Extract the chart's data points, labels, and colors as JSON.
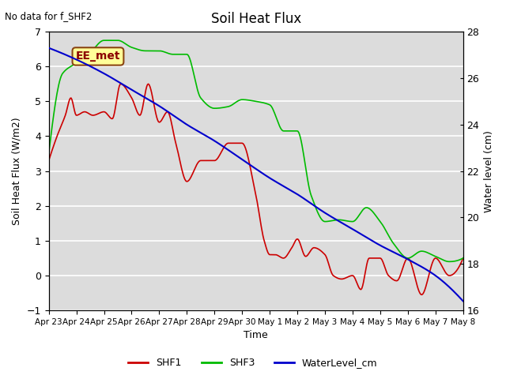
{
  "title": "Soil Heat Flux",
  "top_left_text": "No data for f_SHF2",
  "annotation_box": "EE_met",
  "xlabel": "Time",
  "ylabel_left": "Soil Heat Flux (W/m2)",
  "ylabel_right": "Water level (cm)",
  "ylim_left": [
    -1.0,
    7.0
  ],
  "ylim_right": [
    16,
    28
  ],
  "background_color": "#dcdcdc",
  "xtick_labels": [
    "Apr 23",
    "Apr 24",
    "Apr 25",
    "Apr 26",
    "Apr 27",
    "Apr 28",
    "Apr 29",
    "Apr 30",
    "May 1",
    "May 2",
    "May 3",
    "May 4",
    "May 5",
    "May 6",
    "May 7",
    "May 8"
  ],
  "shf1_color": "#cc0000",
  "shf3_color": "#00bb00",
  "water_color": "#0000cc",
  "legend_labels": [
    "SHF1",
    "SHF3",
    "WaterLevel_cm"
  ],
  "shf1_key_x": [
    0,
    0.3,
    0.6,
    0.8,
    1.0,
    1.3,
    1.6,
    2.0,
    2.3,
    2.6,
    3.0,
    3.3,
    3.6,
    4.0,
    4.3,
    4.6,
    5.0,
    5.5,
    6.0,
    6.5,
    7.0,
    7.5,
    7.8,
    8.0,
    8.2,
    8.5,
    8.8,
    9.0,
    9.3,
    9.6,
    10.0,
    10.3,
    10.6,
    11.0,
    11.3,
    11.6,
    12.0,
    12.3,
    12.6,
    13.0,
    13.5,
    14.0,
    14.5,
    15.0
  ],
  "shf1_key_y": [
    3.3,
    4.0,
    4.6,
    5.1,
    4.6,
    4.7,
    4.6,
    4.7,
    4.5,
    5.5,
    5.1,
    4.6,
    5.5,
    4.4,
    4.7,
    3.8,
    2.7,
    3.3,
    3.3,
    3.8,
    3.8,
    2.3,
    1.0,
    0.6,
    0.6,
    0.5,
    0.8,
    1.05,
    0.55,
    0.8,
    0.6,
    0.0,
    -0.1,
    0.0,
    -0.4,
    0.5,
    0.5,
    0.0,
    -0.15,
    0.5,
    -0.55,
    0.5,
    0.0,
    0.5
  ],
  "shf3_key_x": [
    0,
    0.5,
    1.0,
    1.5,
    2.0,
    2.5,
    3.0,
    3.5,
    4.0,
    4.5,
    5.0,
    5.5,
    6.0,
    6.5,
    7.0,
    7.5,
    8.0,
    8.5,
    9.0,
    9.5,
    10.0,
    10.5,
    11.0,
    11.5,
    12.0,
    12.5,
    13.0,
    13.5,
    14.0,
    14.5,
    15.0
  ],
  "shf3_key_y": [
    3.5,
    5.8,
    6.1,
    6.4,
    6.75,
    6.75,
    6.55,
    6.45,
    6.45,
    6.35,
    6.35,
    5.1,
    4.8,
    4.85,
    5.05,
    5.0,
    4.9,
    4.15,
    4.15,
    2.3,
    1.55,
    1.6,
    1.55,
    1.95,
    1.55,
    0.9,
    0.5,
    0.7,
    0.55,
    0.4,
    0.5
  ],
  "water_key_x": [
    0,
    1,
    2,
    3,
    4,
    5,
    6,
    7,
    8,
    9,
    10,
    11,
    12,
    13,
    14,
    15
  ],
  "water_key_y": [
    27.3,
    26.8,
    26.2,
    25.5,
    24.8,
    24.0,
    23.3,
    22.5,
    21.7,
    21.0,
    20.2,
    19.5,
    18.8,
    18.2,
    17.5,
    16.4
  ]
}
